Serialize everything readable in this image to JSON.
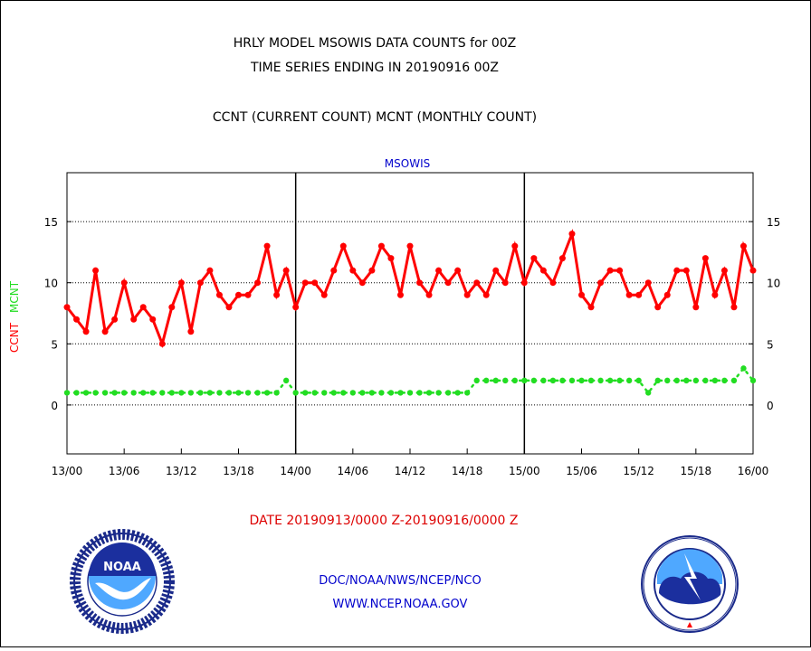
{
  "header": {
    "title_line1": "HRLY MODEL MSOWIS DATA COUNTS for 00Z",
    "title_line2": "TIME SERIES ENDING IN 20190916 00Z",
    "legend_line": "CCNT (CURRENT COUNT) MCNT (MONTHLY COUNT)"
  },
  "footer": {
    "date_range": "DATE 20190913/0000 Z-20190916/0000 Z",
    "org_line": "DOC/NOAA/NWS/NCEP/NCO",
    "url_line": "WWW.NCEP.NOAA.GOV"
  },
  "logos": {
    "left": {
      "text": "NOAA",
      "ring_text": "NATIONAL OCEANIC AND ATMOSPHERIC ADMINISTRATION · U.S. DEPARTMENT OF COMMERCE"
    },
    "right": {
      "ring_text": "NATIONAL WEATHER SERVICE"
    }
  },
  "colors": {
    "ccnt": "#ff0000",
    "mcnt": "#22dd22",
    "title": "#000000",
    "blue_text": "#0000cc",
    "date_text": "#dd0000"
  },
  "chart_data": {
    "type": "line",
    "title": "MSOWIS",
    "ylabel_left_ccnt": "CCNT",
    "ylabel_left_mcnt": "MCNT",
    "x_tick_labels": [
      "13/00",
      "13/06",
      "13/12",
      "13/18",
      "14/00",
      "14/06",
      "14/12",
      "14/18",
      "15/00",
      "15/06",
      "15/12",
      "15/18",
      "16/00"
    ],
    "y_ticks": [
      0,
      5,
      10,
      15
    ],
    "ylim": [
      -4,
      19
    ],
    "x_hours_range": [
      0,
      72
    ],
    "day_separators_hours": [
      24,
      48
    ],
    "grid": "horizontal dotted at 0, 5, 10, 15",
    "series": [
      {
        "name": "CCNT",
        "color": "#ff0000",
        "values": [
          8,
          7,
          6,
          11,
          6,
          7,
          10,
          7,
          8,
          7,
          5,
          8,
          10,
          6,
          10,
          11,
          9,
          8,
          9,
          9,
          10,
          13,
          9,
          11,
          8,
          10,
          10,
          9,
          11,
          13,
          11,
          10,
          11,
          13,
          12,
          9,
          13,
          10,
          9,
          11,
          10,
          11,
          9,
          10,
          9,
          11,
          10,
          13,
          10,
          12,
          11,
          10,
          12,
          14,
          9,
          8,
          10,
          11,
          11,
          9,
          9,
          10,
          8,
          9,
          11,
          11,
          8,
          12,
          9,
          11,
          8,
          13,
          11
        ]
      },
      {
        "name": "MCNT",
        "color": "#22dd22",
        "values": [
          1,
          1,
          1,
          1,
          1,
          1,
          1,
          1,
          1,
          1,
          1,
          1,
          1,
          1,
          1,
          1,
          1,
          1,
          1,
          1,
          1,
          1,
          1,
          2,
          1,
          1,
          1,
          1,
          1,
          1,
          1,
          1,
          1,
          1,
          1,
          1,
          1,
          1,
          1,
          1,
          1,
          1,
          1,
          2,
          2,
          2,
          2,
          2,
          2,
          2,
          2,
          2,
          2,
          2,
          2,
          2,
          2,
          2,
          2,
          2,
          2,
          1,
          2,
          2,
          2,
          2,
          2,
          2,
          2,
          2,
          2,
          3,
          2
        ]
      }
    ]
  }
}
